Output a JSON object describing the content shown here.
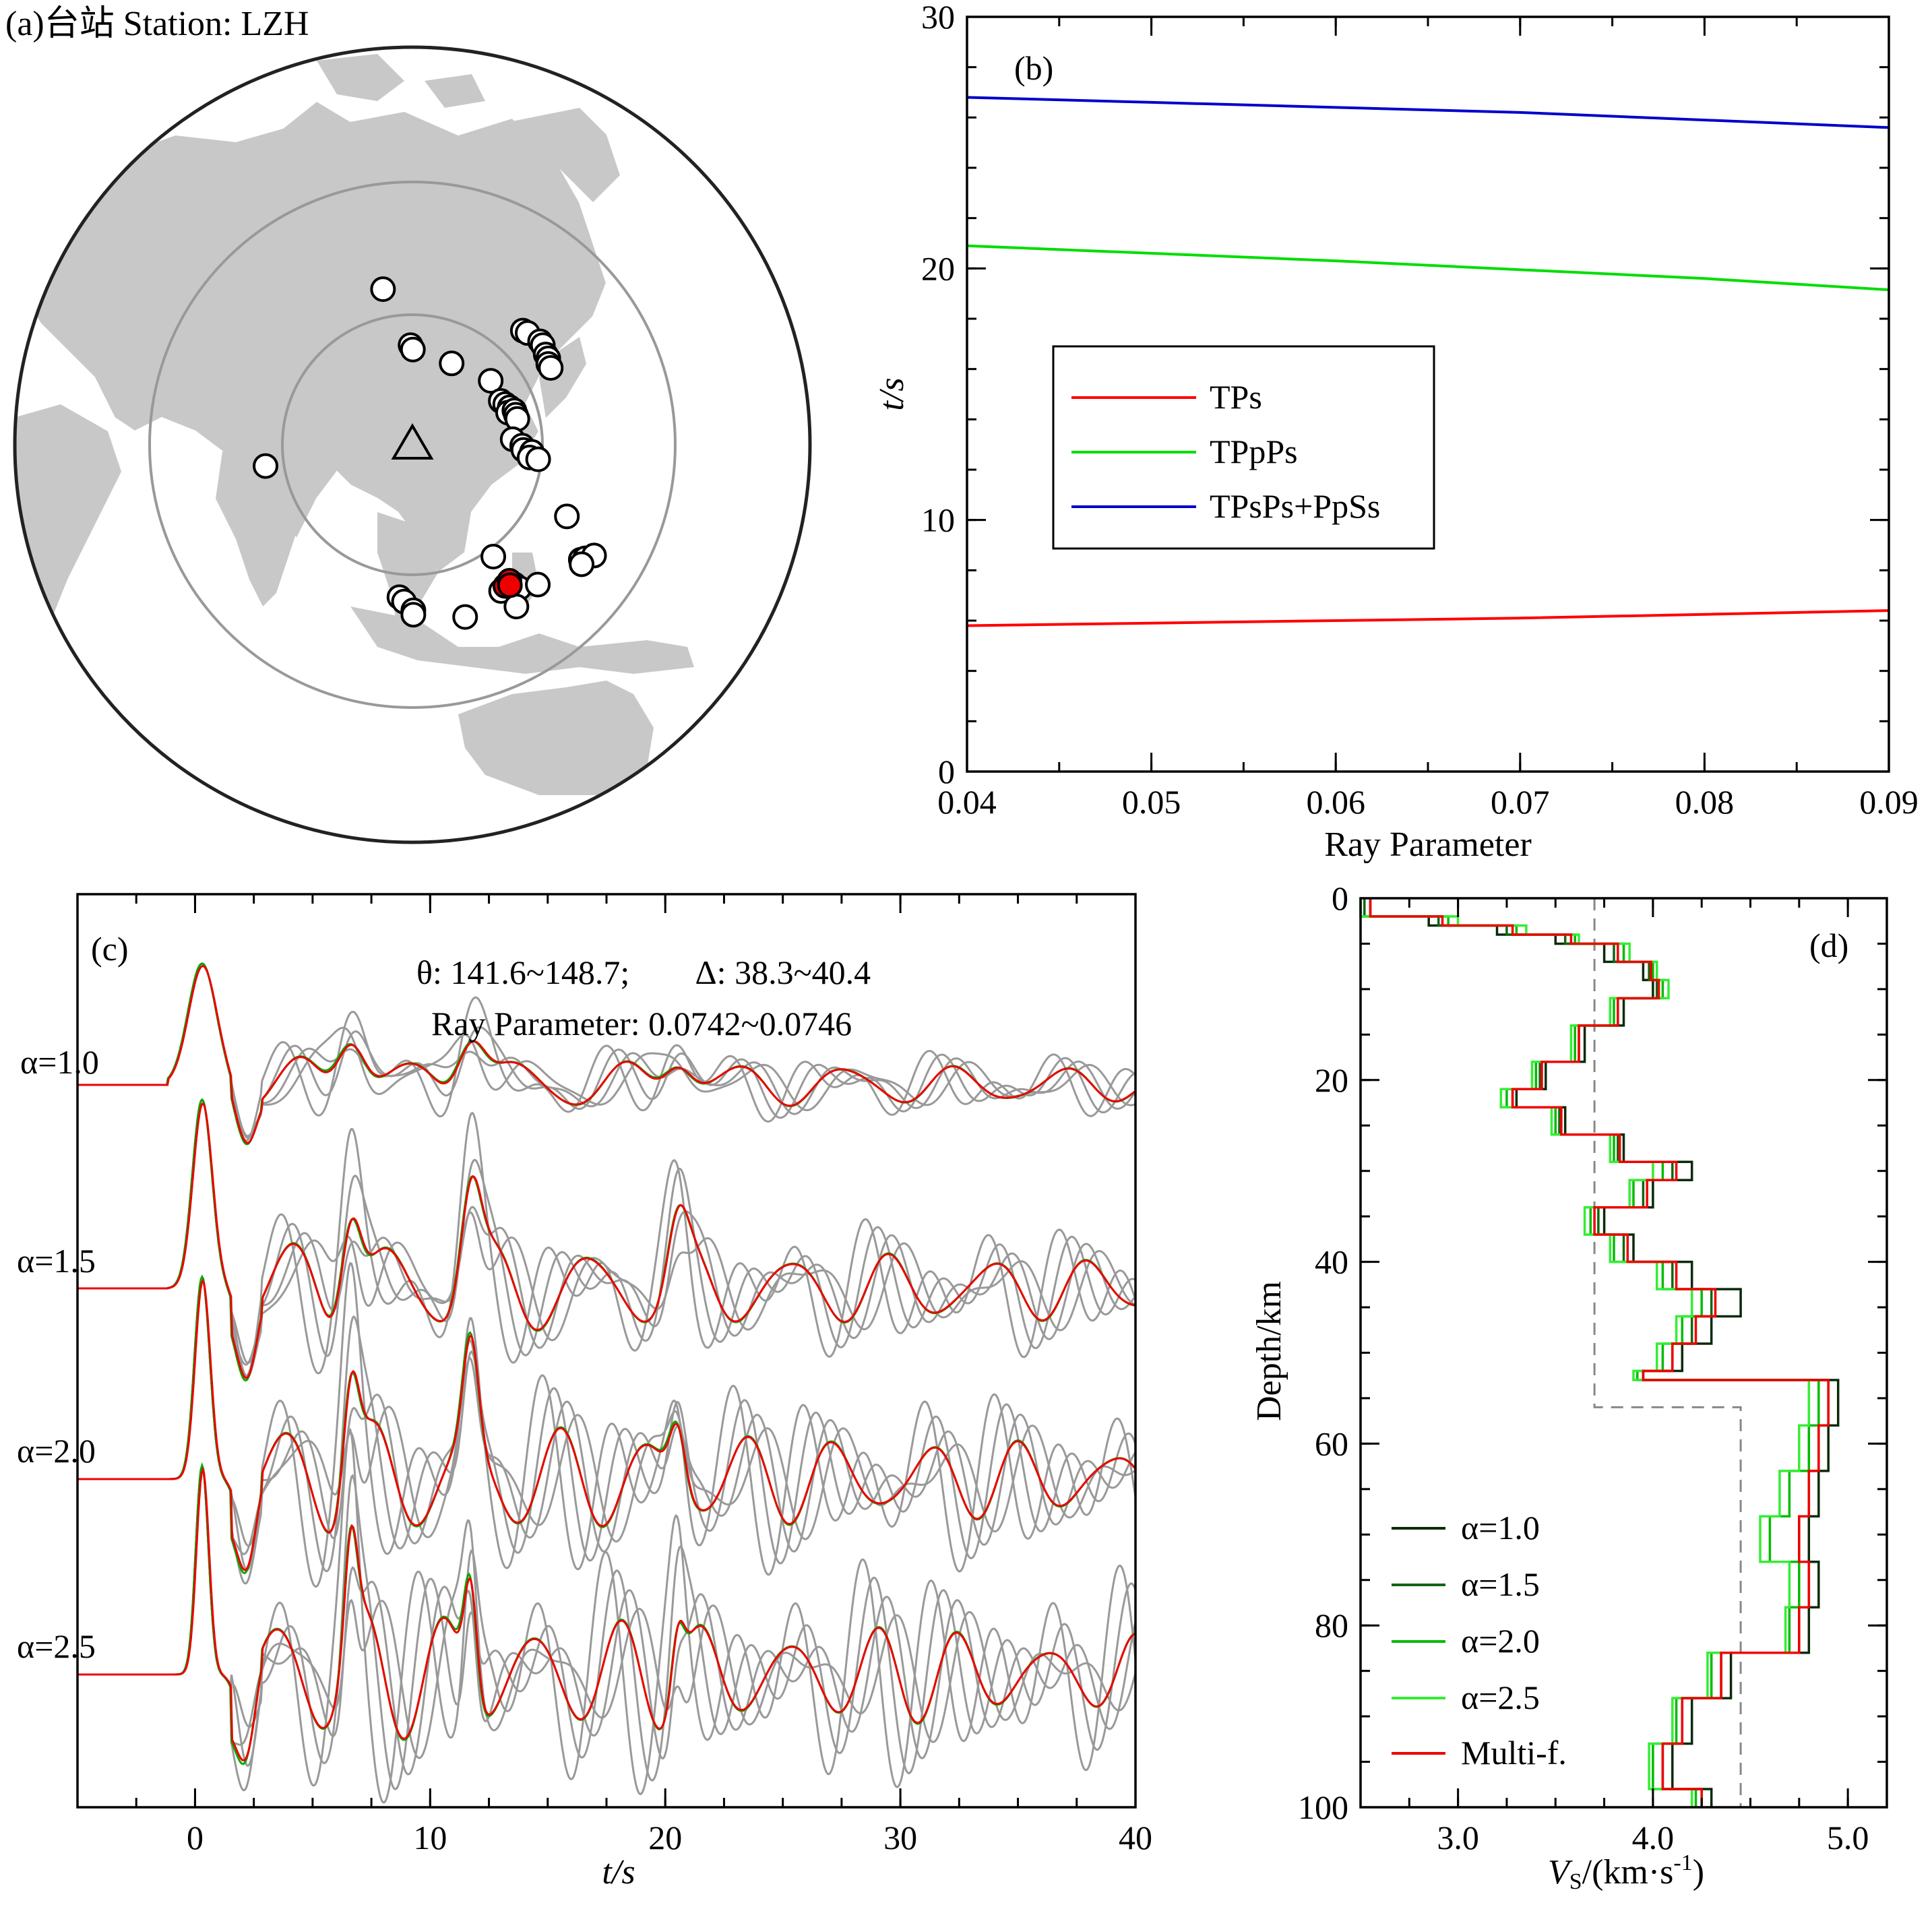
{
  "chart_data": [
    {
      "panel": "a",
      "type": "map",
      "title": "(a)台站 Station: LZH",
      "station": "LZH",
      "events": [
        {
          "lon": 84,
          "lat": 71
        },
        {
          "lon": 103,
          "lat": 59
        },
        {
          "lon": 104,
          "lat": 58
        },
        {
          "lon": 119,
          "lat": 54
        },
        {
          "lon": 131,
          "lat": 48
        },
        {
          "lon": 150,
          "lat": 55
        },
        {
          "lon": 151,
          "lat": 54
        },
        {
          "lon": 153,
          "lat": 51
        },
        {
          "lon": 153,
          "lat": 50
        },
        {
          "lon": 152,
          "lat": 48
        },
        {
          "lon": 152,
          "lat": 47
        },
        {
          "lon": 151,
          "lat": 46
        },
        {
          "lon": 151,
          "lat": 45
        },
        {
          "lon": 132,
          "lat": 43
        },
        {
          "lon": 133,
          "lat": 42
        },
        {
          "lon": 134,
          "lat": 41
        },
        {
          "lon": 133,
          "lat": 40
        },
        {
          "lon": 135,
          "lat": 40
        },
        {
          "lon": 135,
          "lat": 39
        },
        {
          "lon": 135,
          "lat": 38
        },
        {
          "lon": 132,
          "lat": 34
        },
        {
          "lon": 134,
          "lat": 32
        },
        {
          "lon": 134,
          "lat": 31
        },
        {
          "lon": 136,
          "lat": 30
        },
        {
          "lon": 135,
          "lat": 29
        },
        {
          "lon": 137,
          "lat": 28
        },
        {
          "lon": 66,
          "lat": 25
        },
        {
          "lon": 140,
          "lat": 14
        },
        {
          "lon": 122,
          "lat": 9
        },
        {
          "lon": 141,
          "lat": 4
        },
        {
          "lon": 142,
          "lat": 4
        },
        {
          "lon": 144,
          "lat": 4
        },
        {
          "lon": 126,
          "lat": 2
        },
        {
          "lon": 123,
          "lat": 1
        },
        {
          "lon": 127,
          "lat": 1
        },
        {
          "lon": 131,
          "lat": 1
        },
        {
          "lon": 101,
          "lat": 1
        },
        {
          "lon": 102,
          "lat": 0
        },
        {
          "lon": 104,
          "lat": -2
        },
        {
          "lon": 104,
          "lat": -3
        },
        {
          "lon": 126,
          "lat": -3
        },
        {
          "lon": 115,
          "lat": -4
        },
        {
          "lon": 141,
          "lat": 3
        }
      ],
      "selected_events": [
        {
          "lon": 124,
          "lat": 2
        },
        {
          "lon": 125,
          "lat": 3
        },
        {
          "lon": 125,
          "lat": 2
        }
      ]
    },
    {
      "panel": "b",
      "type": "line",
      "label": "(b)",
      "xlabel": "Ray Parameter",
      "ylabel": "t/s",
      "xlim": [
        0.04,
        0.09
      ],
      "ylim": [
        0,
        30
      ],
      "xticks": [
        "0.04",
        "0.05",
        "0.06",
        "0.07",
        "0.08",
        "0.09"
      ],
      "yticks": [
        "0",
        "10",
        "20",
        "30"
      ],
      "legend_position": "middle-left",
      "series": [
        {
          "name": "TPs",
          "color": "#ff0000",
          "x": [
            0.04,
            0.05,
            0.06,
            0.07,
            0.08,
            0.09
          ],
          "y": [
            5.8,
            5.9,
            6.0,
            6.1,
            6.25,
            6.4
          ]
        },
        {
          "name": "TPpPs",
          "color": "#00dd00",
          "x": [
            0.04,
            0.05,
            0.06,
            0.07,
            0.08,
            0.09
          ],
          "y": [
            20.9,
            20.6,
            20.3,
            19.95,
            19.6,
            19.15
          ]
        },
        {
          "name": "TPsPs+PpSs",
          "color": "#0000cc",
          "x": [
            0.04,
            0.05,
            0.06,
            0.07,
            0.08,
            0.09
          ],
          "y": [
            26.8,
            26.6,
            26.4,
            26.2,
            25.9,
            25.6
          ]
        }
      ]
    },
    {
      "panel": "c",
      "type": "line",
      "label": "(c)",
      "xlabel": "t/s",
      "ylabel": "",
      "xlim": [
        -5,
        40
      ],
      "xticks": [
        "0",
        "10",
        "20",
        "30",
        "40"
      ],
      "annotation_1": "θ: 141.6~148.7;        Δ: 38.3~40.4",
      "annotation_2": "Ray Parameter: 0.0742~0.0746",
      "trace_labels": [
        "α=1.0",
        "α=1.5",
        "α=2.0",
        "α=2.5"
      ],
      "alphas": [
        1.0,
        1.5,
        2.0,
        2.5
      ],
      "arrivals": [
        {
          "t": 0.3,
          "amp": 1.0
        },
        {
          "t": 6.6,
          "amp": 0.55
        },
        {
          "t": 11.7,
          "amp": 0.55
        },
        {
          "t": 20.5,
          "amp": 0.3
        }
      ]
    },
    {
      "panel": "d",
      "type": "line",
      "label": "(d)",
      "xlabel": "VS/(km·s-1)",
      "ylabel": "Depth/km",
      "xlim": [
        2.5,
        5.2
      ],
      "ylim": [
        0,
        100
      ],
      "xticks": [
        "3.0",
        "4.0",
        "5.0"
      ],
      "yticks": [
        "0",
        "20",
        "40",
        "60",
        "80",
        "100"
      ],
      "legend_position": "bottom-left",
      "initial_model": {
        "style": "dashed",
        "depth": [
          0,
          56,
          56,
          100
        ],
        "vs": [
          3.7,
          3.7,
          4.45,
          4.45
        ]
      },
      "series": [
        {
          "name": "α=1.0",
          "color": "#0a2a0a",
          "depth": [
            0,
            2,
            3,
            4,
            5,
            7,
            9,
            11,
            14,
            18,
            21,
            23,
            26,
            29,
            31,
            34,
            37,
            40,
            43,
            46,
            49,
            52,
            53,
            58,
            63,
            68,
            73,
            78,
            83,
            88,
            93,
            98,
            100
          ],
          "vs": [
            2.55,
            2.85,
            3.2,
            3.5,
            3.75,
            3.95,
            4.0,
            3.85,
            3.65,
            3.45,
            3.3,
            3.55,
            3.85,
            4.2,
            4.0,
            3.75,
            3.9,
            4.2,
            4.45,
            4.3,
            4.15,
            3.95,
            4.95,
            4.9,
            4.85,
            4.8,
            4.85,
            4.8,
            4.4,
            4.2,
            4.1,
            4.3,
            4.3
          ]
        },
        {
          "name": "α=1.5",
          "color": "#116611",
          "depth": [
            0,
            2,
            3,
            4,
            5,
            7,
            9,
            11,
            14,
            18,
            21,
            23,
            26,
            29,
            31,
            34,
            37,
            40,
            43,
            46,
            49,
            52,
            53,
            58,
            63,
            68,
            73,
            78,
            83,
            88,
            93,
            98,
            100
          ],
          "vs": [
            2.52,
            2.9,
            3.25,
            3.55,
            3.8,
            3.98,
            4.02,
            3.82,
            3.62,
            3.42,
            3.28,
            3.52,
            3.82,
            4.1,
            3.95,
            3.72,
            3.85,
            4.1,
            4.3,
            4.2,
            4.1,
            3.95,
            4.9,
            4.85,
            4.8,
            4.75,
            4.8,
            4.75,
            4.35,
            4.15,
            4.05,
            4.25,
            4.25
          ]
        },
        {
          "name": "α=2.0",
          "color": "#00bb00",
          "depth": [
            0,
            2,
            3,
            4,
            5,
            7,
            9,
            11,
            14,
            18,
            21,
            23,
            26,
            29,
            31,
            34,
            37,
            40,
            43,
            46,
            49,
            52,
            53,
            58,
            63,
            68,
            73,
            78,
            83,
            88,
            93,
            98,
            100
          ],
          "vs": [
            2.5,
            2.95,
            3.3,
            3.6,
            3.85,
            4.0,
            4.05,
            3.8,
            3.6,
            3.4,
            3.25,
            3.5,
            3.8,
            4.05,
            3.9,
            3.68,
            3.8,
            4.05,
            4.25,
            4.15,
            4.05,
            3.92,
            4.85,
            4.8,
            4.7,
            4.6,
            4.75,
            4.7,
            4.3,
            4.12,
            4.0,
            4.22,
            4.22
          ]
        },
        {
          "name": "α=2.5",
          "color": "#33ee33",
          "depth": [
            0,
            2,
            3,
            4,
            5,
            7,
            9,
            11,
            14,
            18,
            21,
            23,
            26,
            29,
            31,
            34,
            37,
            40,
            43,
            46,
            49,
            52,
            53,
            58,
            63,
            68,
            73,
            78,
            83,
            88,
            93,
            98,
            100
          ],
          "vs": [
            2.5,
            3.0,
            3.35,
            3.62,
            3.88,
            4.02,
            4.08,
            3.78,
            3.58,
            3.38,
            3.22,
            3.48,
            3.78,
            4.0,
            3.88,
            3.65,
            3.78,
            4.02,
            4.2,
            4.12,
            4.02,
            3.9,
            4.8,
            4.75,
            4.65,
            4.55,
            4.7,
            4.68,
            4.28,
            4.1,
            3.98,
            4.2,
            4.2
          ]
        },
        {
          "name": "Multi-f.",
          "color": "#ee0000",
          "depth": [
            0,
            2,
            3,
            4,
            5,
            7,
            9,
            11,
            14,
            18,
            21,
            23,
            26,
            29,
            31,
            34,
            37,
            40,
            43,
            46,
            49,
            52,
            53,
            58,
            63,
            68,
            73,
            78,
            83,
            88,
            93,
            98,
            100
          ],
          "vs": [
            2.55,
            2.92,
            3.28,
            3.58,
            3.82,
            3.99,
            4.03,
            3.82,
            3.62,
            3.43,
            3.28,
            3.53,
            3.83,
            4.12,
            3.97,
            3.7,
            3.87,
            4.12,
            4.32,
            4.22,
            4.1,
            3.95,
            4.9,
            4.85,
            4.8,
            4.75,
            4.8,
            4.75,
            4.35,
            4.15,
            4.05,
            4.25,
            4.25
          ]
        }
      ]
    }
  ]
}
